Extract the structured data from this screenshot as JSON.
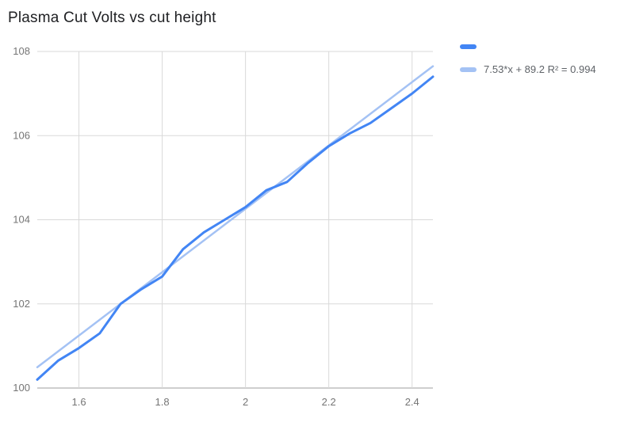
{
  "chart_data": {
    "type": "line",
    "title": "Plasma Cut Volts vs cut height",
    "x": [
      1.5,
      1.55,
      1.6,
      1.65,
      1.7,
      1.75,
      1.8,
      1.85,
      1.9,
      1.95,
      2.0,
      2.05,
      2.1,
      2.15,
      2.2,
      2.25,
      2.3,
      2.35,
      2.4,
      2.45
    ],
    "series": [
      {
        "name": "",
        "color": "#4285f4",
        "values": [
          100.2,
          100.65,
          100.95,
          101.3,
          102.0,
          102.35,
          102.65,
          103.3,
          103.7,
          104.0,
          104.3,
          104.7,
          104.9,
          105.35,
          105.75,
          106.05,
          106.3,
          106.65,
          107.0,
          107.4
        ]
      }
    ],
    "trendline": {
      "label": "7.53*x + 89.2 R² = 0.994",
      "slope": 7.53,
      "intercept": 89.2,
      "r2": 0.994,
      "color": "#a4c2f4"
    },
    "xlim": [
      1.5,
      2.45
    ],
    "ylim": [
      100,
      108
    ],
    "x_ticks": [
      1.6,
      1.8,
      2.0,
      2.2,
      2.4
    ],
    "x_tick_labels": [
      "1.6",
      "1.8",
      "2",
      "2.2",
      "2.4"
    ],
    "y_ticks": [
      100,
      102,
      104,
      106,
      108
    ],
    "y_tick_labels": [
      "100",
      "102",
      "104",
      "106",
      "108"
    ],
    "grid": true,
    "legend_position": "top-right"
  },
  "legend": {
    "series_label": "",
    "trendline_label": "7.53*x + 89.2 R² = 0.994"
  },
  "colors": {
    "series": "#4285f4",
    "trendline": "#a4c2f4",
    "gridline": "#d9d9d9",
    "axis_line": "#9e9e9e",
    "tick_label": "#757575",
    "title": "#202124",
    "background": "#ffffff"
  }
}
